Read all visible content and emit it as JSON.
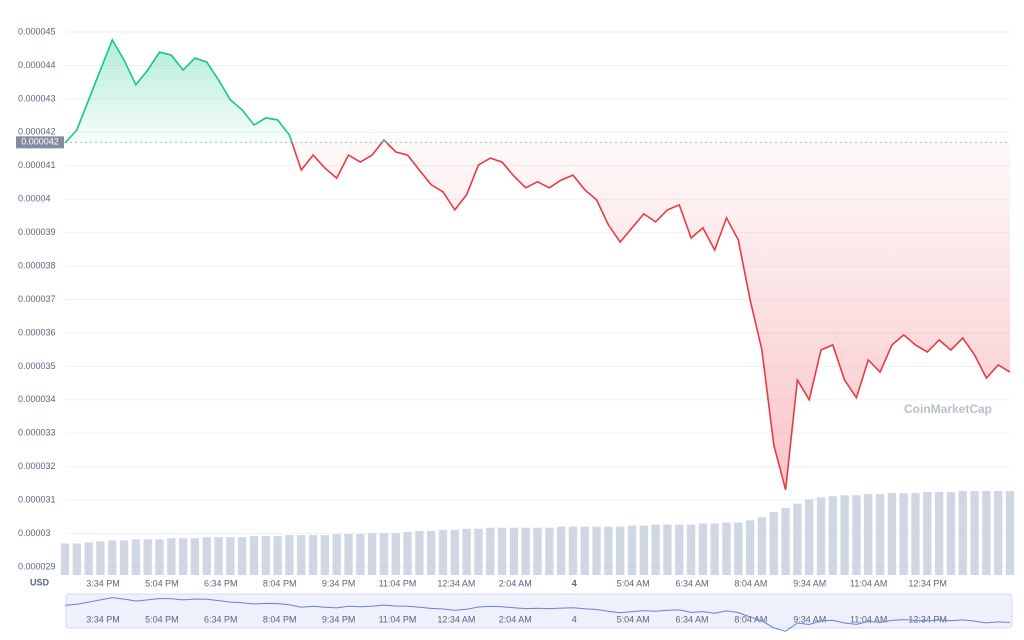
{
  "chart_data": {
    "type": "line",
    "currency": "USD",
    "watermark": "CoinMarketCap",
    "baseline": {
      "value": 4.17e-05,
      "label": "0.000042"
    },
    "ylim": [
      2.9e-05,
      4.5e-05
    ],
    "yticks": [
      2.9e-05,
      3e-05,
      3.1e-05,
      3.2e-05,
      3.3e-05,
      3.4e-05,
      3.5e-05,
      3.6e-05,
      3.7e-05,
      3.8e-05,
      3.9e-05,
      4e-05,
      4.1e-05,
      4.2e-05,
      4.3e-05,
      4.4e-05,
      4.5e-05
    ],
    "xlabels": [
      "3:34 PM",
      "5:04 PM",
      "6:34 PM",
      "8:04 PM",
      "9:34 PM",
      "11:04 PM",
      "12:34 AM",
      "2:04 AM",
      "4",
      "5:04 AM",
      "6:34 AM",
      "8:04 AM",
      "9:34 AM",
      "11:04 AM",
      "12:34 PM"
    ],
    "up_color": "#16c784",
    "down_color": "#ea3943",
    "volume_color": "#cfd6e4",
    "values": [
      4.168e-05,
      4.207e-05,
      4.297e-05,
      4.386e-05,
      4.476e-05,
      4.416e-05,
      4.342e-05,
      4.386e-05,
      4.44e-05,
      4.431e-05,
      4.386e-05,
      4.422e-05,
      4.41e-05,
      4.356e-05,
      4.297e-05,
      4.267e-05,
      4.222e-05,
      4.243e-05,
      4.237e-05,
      4.192e-05,
      4.087e-05,
      4.132e-05,
      4.093e-05,
      4.063e-05,
      4.132e-05,
      4.111e-05,
      4.132e-05,
      4.177e-05,
      4.141e-05,
      4.132e-05,
      4.087e-05,
      4.043e-05,
      4.022e-05,
      3.968e-05,
      4.013e-05,
      4.102e-05,
      4.123e-05,
      4.111e-05,
      4.069e-05,
      4.034e-05,
      4.052e-05,
      4.034e-05,
      4.057e-05,
      4.072e-05,
      4.028e-05,
      3.998e-05,
      3.923e-05,
      3.872e-05,
      3.914e-05,
      3.956e-05,
      3.932e-05,
      3.968e-05,
      3.983e-05,
      3.884e-05,
      3.914e-05,
      3.848e-05,
      3.944e-05,
      3.878e-05,
      3.699e-05,
      3.549e-05,
      3.265e-05,
      3.131e-05,
      3.459e-05,
      3.4e-05,
      3.549e-05,
      3.564e-05,
      3.459e-05,
      3.406e-05,
      3.519e-05,
      3.483e-05,
      3.564e-05,
      3.594e-05,
      3.564e-05,
      3.543e-05,
      3.579e-05,
      3.549e-05,
      3.585e-05,
      3.534e-05,
      3.465e-05,
      3.504e-05,
      3.483e-05
    ],
    "volume": [
      30,
      30,
      31,
      32,
      33,
      33,
      34,
      34,
      34,
      35,
      35,
      35,
      36,
      36,
      36,
      36,
      37,
      37,
      37,
      38,
      38,
      38,
      38,
      39,
      39,
      39,
      40,
      40,
      40,
      41,
      42,
      42,
      43,
      43,
      44,
      44,
      45,
      45,
      45,
      45,
      45,
      45,
      46,
      46,
      46,
      46,
      46,
      46,
      47,
      47,
      48,
      48,
      48,
      48,
      49,
      49,
      50,
      50,
      52,
      55,
      60,
      64,
      68,
      72,
      74,
      75,
      76,
      76,
      77,
      77,
      78,
      78,
      78,
      79,
      79,
      79,
      80,
      80,
      80,
      80,
      80
    ]
  }
}
